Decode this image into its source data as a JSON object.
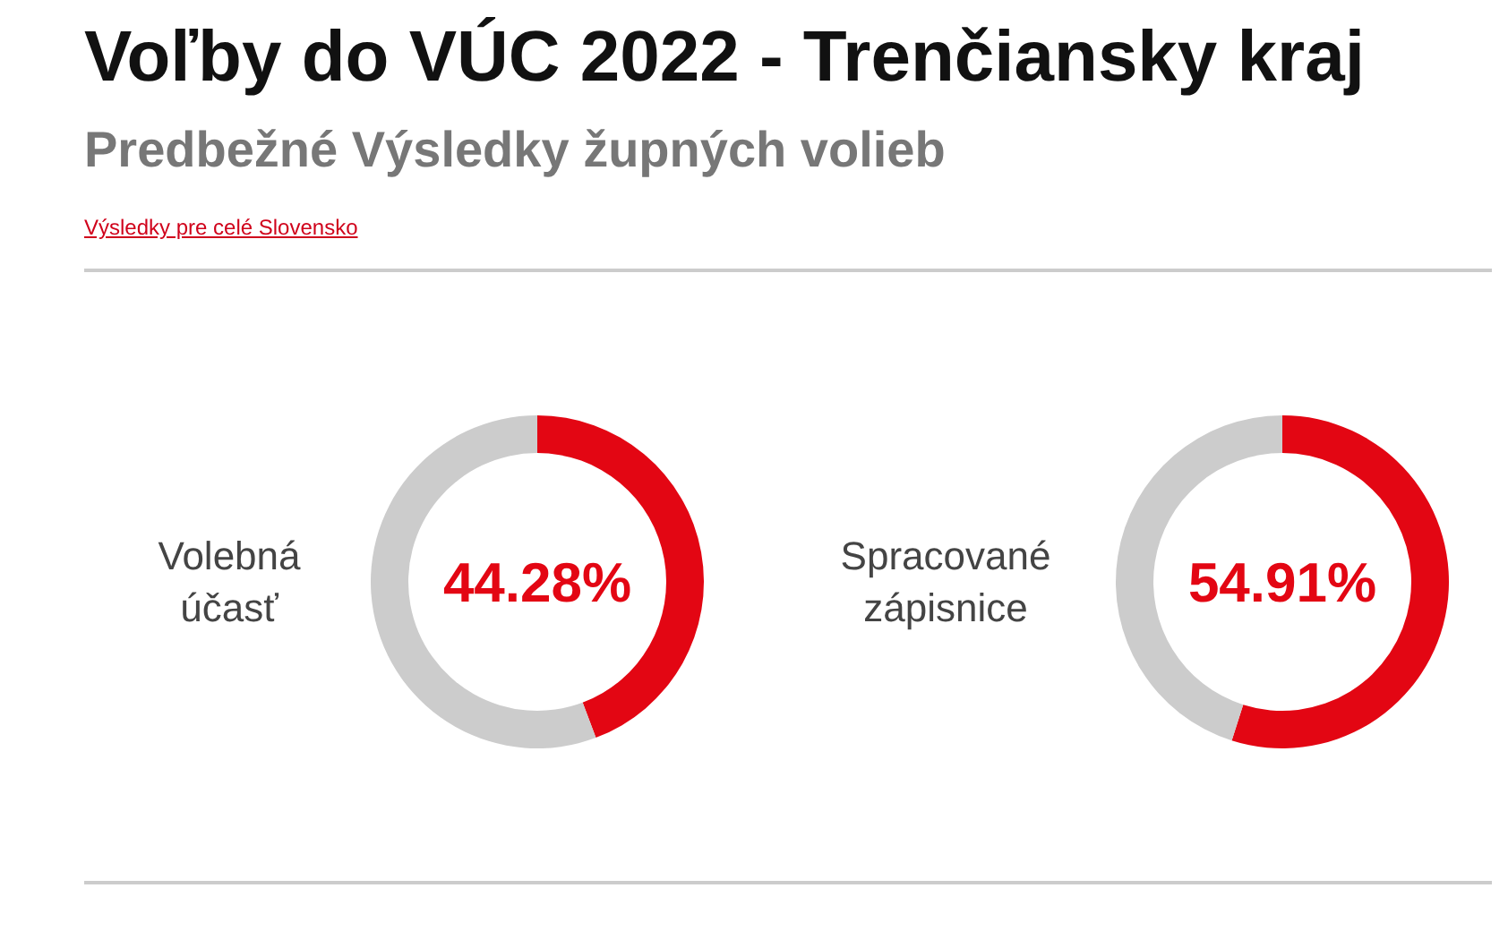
{
  "chart_data": [
    {
      "type": "other",
      "title": "Voľby do VÚC 2022 - Trenčiansky kraj",
      "subtitle": "Predbežné Výsledky župných volieb",
      "annotations": [
        "Výsledky pre celé Slovensko"
      ]
    },
    {
      "type": "donut",
      "title": "Volebná účasť",
      "categories": [
        null,
        null
      ],
      "values": [
        44.28,
        55.72
      ],
      "colors": [
        "#e30613",
        "#cccccc"
      ],
      "annotations": [
        "44.28%"
      ]
    },
    {
      "type": "donut",
      "title": "Spracované zápisnice",
      "categories": [
        null,
        null
      ],
      "values": [
        54.91,
        45.09
      ],
      "colors": [
        "#e30613",
        "#cccccc"
      ],
      "annotations": [
        "54.91%"
      ]
    }
  ]
}
